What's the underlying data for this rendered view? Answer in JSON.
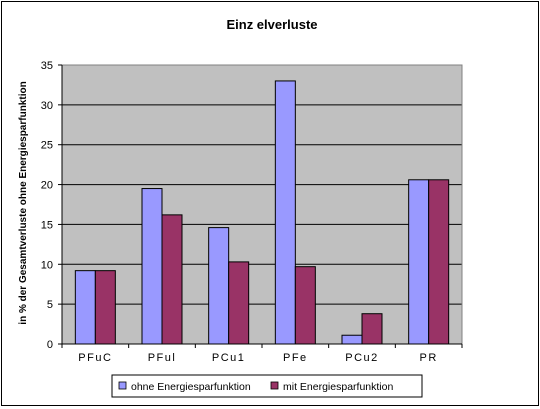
{
  "chart_data": {
    "type": "bar",
    "title": "Einz elverluste",
    "xlabel": "",
    "ylabel": "in % der Gesamtverluste ohne Energiesparfunktion",
    "categories": [
      "PFuC",
      "PFul",
      "PCu1",
      "PFe",
      "PCu2",
      "PR"
    ],
    "series": [
      {
        "name": "ohne Energiesparfunktion",
        "color": "#9999FF",
        "values": [
          9.2,
          19.5,
          14.6,
          33.0,
          1.1,
          20.6
        ]
      },
      {
        "name": "mit Energiesparfunktion",
        "color": "#993366",
        "values": [
          9.2,
          16.2,
          10.3,
          9.7,
          3.8,
          20.6
        ]
      }
    ],
    "ylim": [
      0,
      35
    ],
    "yticks": [
      0,
      5,
      10,
      15,
      20,
      25,
      30,
      35
    ],
    "grid": true,
    "plot_background": "#C0C0C0",
    "legend_position": "bottom"
  }
}
